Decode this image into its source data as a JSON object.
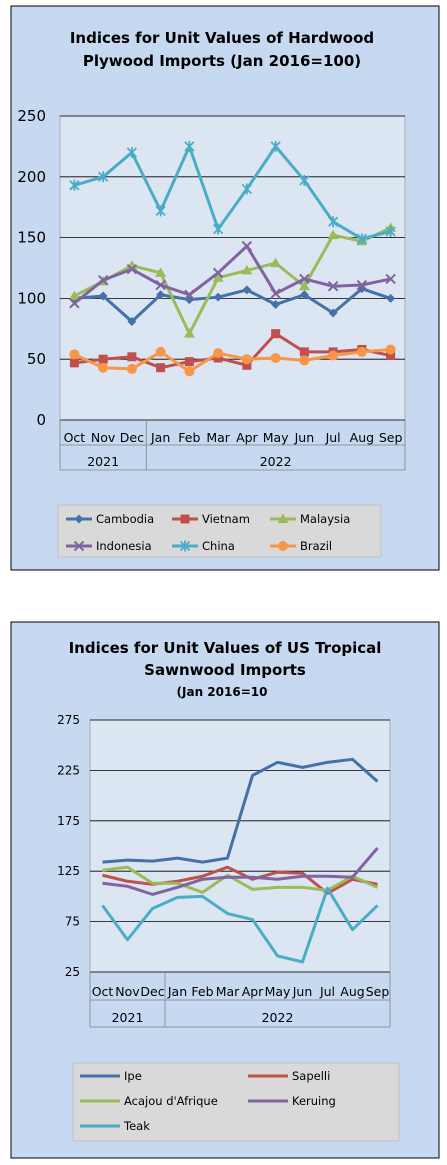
{
  "chart_data": [
    {
      "type": "line",
      "title": "Indices for Unit Values of Hardwood",
      "subtitle": "Plywood Imports (Jan 2016=100)",
      "categories": [
        "Oct",
        "Nov",
        "Dec",
        "Jan",
        "Feb",
        "Mar",
        "Apr",
        "May",
        "Jun",
        "Jul",
        "Aug",
        "Sep"
      ],
      "year_groups": [
        {
          "label": "2021",
          "span": 3
        },
        {
          "label": "2022",
          "span": 9
        }
      ],
      "yticks": [
        0,
        50,
        100,
        150,
        200,
        250
      ],
      "ylim": [
        0,
        250
      ],
      "grid": true,
      "legend": "bottom",
      "series": [
        {
          "name": "Cambodia",
          "color": "#4472a8",
          "marker": "diamond",
          "values": [
            100,
            102,
            81,
            103,
            99,
            101,
            107,
            95,
            103,
            88,
            108,
            100
          ]
        },
        {
          "name": "Vietnam",
          "color": "#c0504d",
          "marker": "square",
          "values": [
            47,
            50,
            52,
            43,
            48,
            51,
            45,
            71,
            56,
            56,
            58,
            53
          ]
        },
        {
          "name": "Malaysia",
          "color": "#9bbb59",
          "marker": "triangle",
          "values": [
            102,
            114,
            127,
            121,
            71,
            117,
            123,
            129,
            110,
            152,
            147,
            158
          ]
        },
        {
          "name": "Indonesia",
          "color": "#8064a2",
          "marker": "x",
          "values": [
            96,
            115,
            124,
            111,
            103,
            121,
            143,
            104,
            116,
            110,
            111,
            116
          ]
        },
        {
          "name": "China",
          "color": "#4bacc6",
          "marker": "star",
          "values": [
            193,
            200,
            220,
            172,
            225,
            157,
            190,
            225,
            197,
            163,
            149,
            155
          ]
        },
        {
          "name": "Brazil",
          "color": "#f79646",
          "marker": "circle",
          "values": [
            54,
            43,
            42,
            56,
            40,
            55,
            50,
            51,
            49,
            53,
            56,
            58
          ]
        }
      ]
    },
    {
      "type": "line",
      "title": "Indices for Unit Values of US Tropical",
      "subtitle": "Sawnwood Imports",
      "subtitle2": "(Jan 2016=10",
      "categories": [
        "Oct",
        "Nov",
        "Dec",
        "Jan",
        "Feb",
        "Mar",
        "Apr",
        "May",
        "Jun",
        "Jul",
        "Aug",
        "Sep"
      ],
      "year_groups": [
        {
          "label": "2021",
          "span": 3
        },
        {
          "label": "2022",
          "span": 9
        }
      ],
      "yticks": [
        25,
        75,
        125,
        175,
        225,
        275
      ],
      "ylim": [
        25,
        275
      ],
      "grid": true,
      "legend": "bottom",
      "series": [
        {
          "name": "Ipe",
          "color": "#4472a8",
          "values": [
            134,
            136,
            135,
            138,
            134,
            138,
            220,
            233,
            228,
            233,
            236,
            214
          ]
        },
        {
          "name": "Sapelli",
          "color": "#c0504d",
          "values": [
            121,
            115,
            112,
            115,
            120,
            129,
            117,
            124,
            123,
            103,
            117,
            112
          ]
        },
        {
          "name": "Acajou d'Afrique",
          "color": "#9bbb59",
          "values": [
            126,
            129,
            113,
            113,
            104,
            121,
            107,
            109,
            109,
            106,
            120,
            109
          ]
        },
        {
          "name": "Keruing",
          "color": "#8064a2",
          "values": [
            113,
            110,
            102,
            109,
            117,
            119,
            119,
            117,
            120,
            120,
            119,
            148
          ]
        },
        {
          "name": "Teak",
          "color": "#4bacc6",
          "values": [
            91,
            57,
            88,
            99,
            100,
            83,
            77,
            41,
            35,
            108,
            67,
            91
          ]
        }
      ]
    }
  ]
}
